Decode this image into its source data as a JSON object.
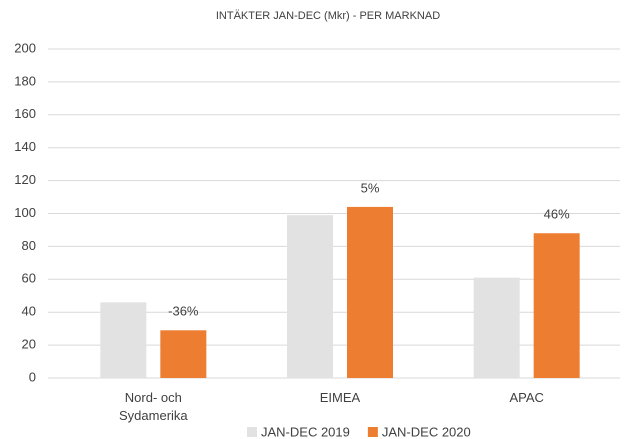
{
  "chart_data": {
    "type": "bar",
    "title": "INTÄKTER JAN-DEC (Mkr) - PER MARKNAD",
    "categories": [
      "Nord- och Sydamerika",
      "EIMEA",
      "APAC"
    ],
    "series": [
      {
        "name": "JAN-DEC 2019",
        "color": "#e2e2e2",
        "values": [
          46,
          99,
          61
        ]
      },
      {
        "name": "JAN-DEC 2020",
        "color": "#ed7d31",
        "values": [
          29,
          104,
          88
        ]
      }
    ],
    "annotations": [
      "-36%",
      "5%",
      "46%"
    ],
    "ylim": [
      0,
      200
    ],
    "yticks": [
      0,
      20,
      40,
      60,
      80,
      100,
      120,
      140,
      160,
      180,
      200
    ],
    "grid": true,
    "legend": "bottom"
  }
}
